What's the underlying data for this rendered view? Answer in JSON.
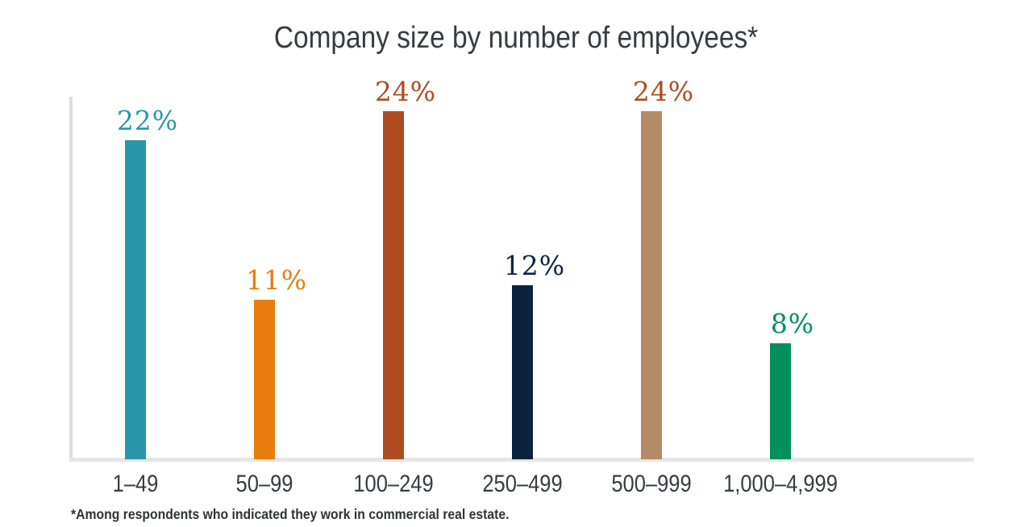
{
  "chart": {
    "title": "Company size by number of employees*",
    "footnote": "*Among respondents who indicated they work in commercial real estate."
  },
  "chart_data": {
    "type": "bar",
    "title": "Company size by number of employees*",
    "categories": [
      "1–49",
      "50–99",
      "100–249",
      "250–499",
      "500–999",
      "1,000–4,999"
    ],
    "values": [
      22,
      11,
      24,
      12,
      24,
      8
    ],
    "data_labels": [
      "22%",
      "11%",
      "24%",
      "12%",
      "24%",
      "8%"
    ],
    "unit": "percent",
    "bar_colors": [
      "#2996ab",
      "#e87d0e",
      "#b04a21",
      "#0c2340",
      "#b48b64",
      "#008f5d"
    ],
    "label_colors": [
      "#2996ab",
      "#e87d0e",
      "#b04a21",
      "#0c2340",
      "#b04a21",
      "#008f5d"
    ],
    "xlabel": "",
    "ylabel": "",
    "ylim": [
      0,
      25
    ],
    "grid": false,
    "legend": false,
    "axis_color": "#dcdcdc",
    "baseline_color": "#e5e5e5",
    "footnote": "*Among respondents who indicated they work in commercial real estate."
  }
}
